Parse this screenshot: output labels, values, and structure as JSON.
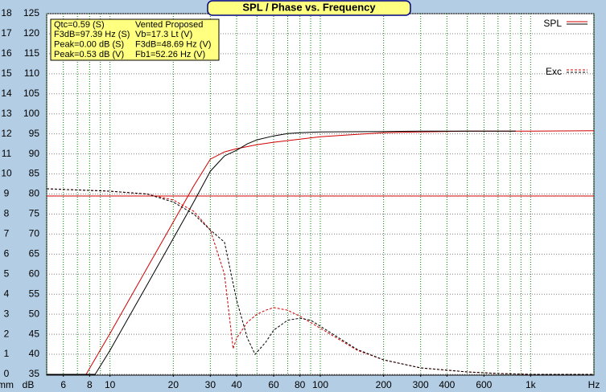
{
  "chart_data": {
    "type": "line",
    "title": "SPL / Phase vs. Frequency",
    "x_unit": "Hz",
    "y_unit": "dB",
    "y2_unit": "mm",
    "xscale": "log",
    "xlim": [
      5,
      2000
    ],
    "xticks": [
      6,
      8,
      10,
      20,
      30,
      40,
      60,
      80,
      100,
      200,
      300,
      400,
      600,
      {
        "value": 1000,
        "label": "1k"
      }
    ],
    "xgrid": [
      5,
      6,
      7,
      8,
      9,
      10,
      20,
      30,
      40,
      50,
      60,
      70,
      80,
      90,
      100,
      200,
      300,
      400,
      500,
      600,
      700,
      800,
      900,
      1000,
      2000
    ],
    "ylim": [
      35,
      125
    ],
    "yticks": [
      35,
      40,
      45,
      50,
      55,
      60,
      65,
      70,
      75,
      80,
      85,
      90,
      95,
      100,
      105,
      110,
      115,
      120,
      125
    ],
    "y2lim": [
      0,
      18
    ],
    "y2ticks": [
      0,
      1,
      2,
      3,
      4,
      5,
      6,
      7,
      8,
      9,
      10,
      11,
      12,
      13,
      14,
      15,
      16,
      17,
      18
    ],
    "grid": true,
    "ref_line": {
      "value": 79.5,
      "color": "#d00000"
    },
    "info": [
      [
        "Qtc=0.59 (S)",
        "Vented Proposed"
      ],
      [
        "F3dB=97.39 Hz (S)",
        "Vb=17.3 Lt (V)"
      ],
      [
        "Peak=0.00 dB (S)",
        "F3dB=48.69 Hz (V)"
      ],
      [
        "Peak=0.53 dB (V)",
        "Fb1=52.26 Hz (V)"
      ]
    ],
    "series": [
      {
        "name": "SPL",
        "color": "#d00000",
        "style": "solid",
        "x": [
          5,
          7.7,
          10,
          15,
          20,
          25,
          30,
          35,
          40,
          50,
          60,
          80,
          100,
          150,
          200,
          300,
          500,
          1000,
          2000
        ],
        "values": [
          35,
          35,
          45.2,
          61.5,
          73,
          82,
          88.7,
          90.5,
          91.3,
          92.3,
          92.9,
          93.7,
          94.3,
          94.9,
          95.3,
          95.5,
          95.7,
          95.7,
          95.8
        ]
      },
      {
        "name": "SPL",
        "color": "#000000",
        "style": "solid",
        "x": [
          5,
          8.5,
          10,
          15,
          20,
          25,
          30,
          35,
          40,
          45,
          50,
          60,
          70,
          80,
          100,
          200,
          300,
          850
        ],
        "values": [
          35,
          35,
          41,
          57.3,
          68.9,
          78,
          85.7,
          89.5,
          90.9,
          92.5,
          93.5,
          94.5,
          95.1,
          95.3,
          95.5,
          95.6,
          95.7,
          95.7
        ]
      },
      {
        "name": "Exc",
        "color": "#d00000",
        "style": "dashed",
        "axis": "y2",
        "x": [
          5,
          10,
          15,
          20,
          25,
          30,
          35,
          38.5,
          40,
          45,
          50,
          55,
          60,
          70,
          80,
          100,
          150,
          200,
          300,
          500,
          700,
          1000,
          2000
        ],
        "values": [
          9.26,
          9.14,
          9.0,
          8.7,
          8.14,
          7.2,
          5.0,
          1.28,
          1.8,
          2.6,
          3.0,
          3.2,
          3.33,
          3.2,
          2.9,
          2.3,
          1.2,
          0.72,
          0.32,
          0.12,
          0.04,
          0,
          0
        ]
      },
      {
        "name": "Exc",
        "color": "#000000",
        "style": "dashed",
        "axis": "y2",
        "x": [
          5,
          10,
          15,
          20,
          25,
          30,
          35,
          40,
          45,
          49,
          55,
          60,
          70,
          80,
          90,
          100,
          150,
          200,
          300,
          500,
          700,
          1000,
          2000
        ],
        "values": [
          9.26,
          9.14,
          9.0,
          8.6,
          8.0,
          7.2,
          6.6,
          3.7,
          1.8,
          1.0,
          1.6,
          2.2,
          2.7,
          2.8,
          2.7,
          2.4,
          1.24,
          0.72,
          0.32,
          0.12,
          0.04,
          0,
          0
        ]
      }
    ]
  }
}
